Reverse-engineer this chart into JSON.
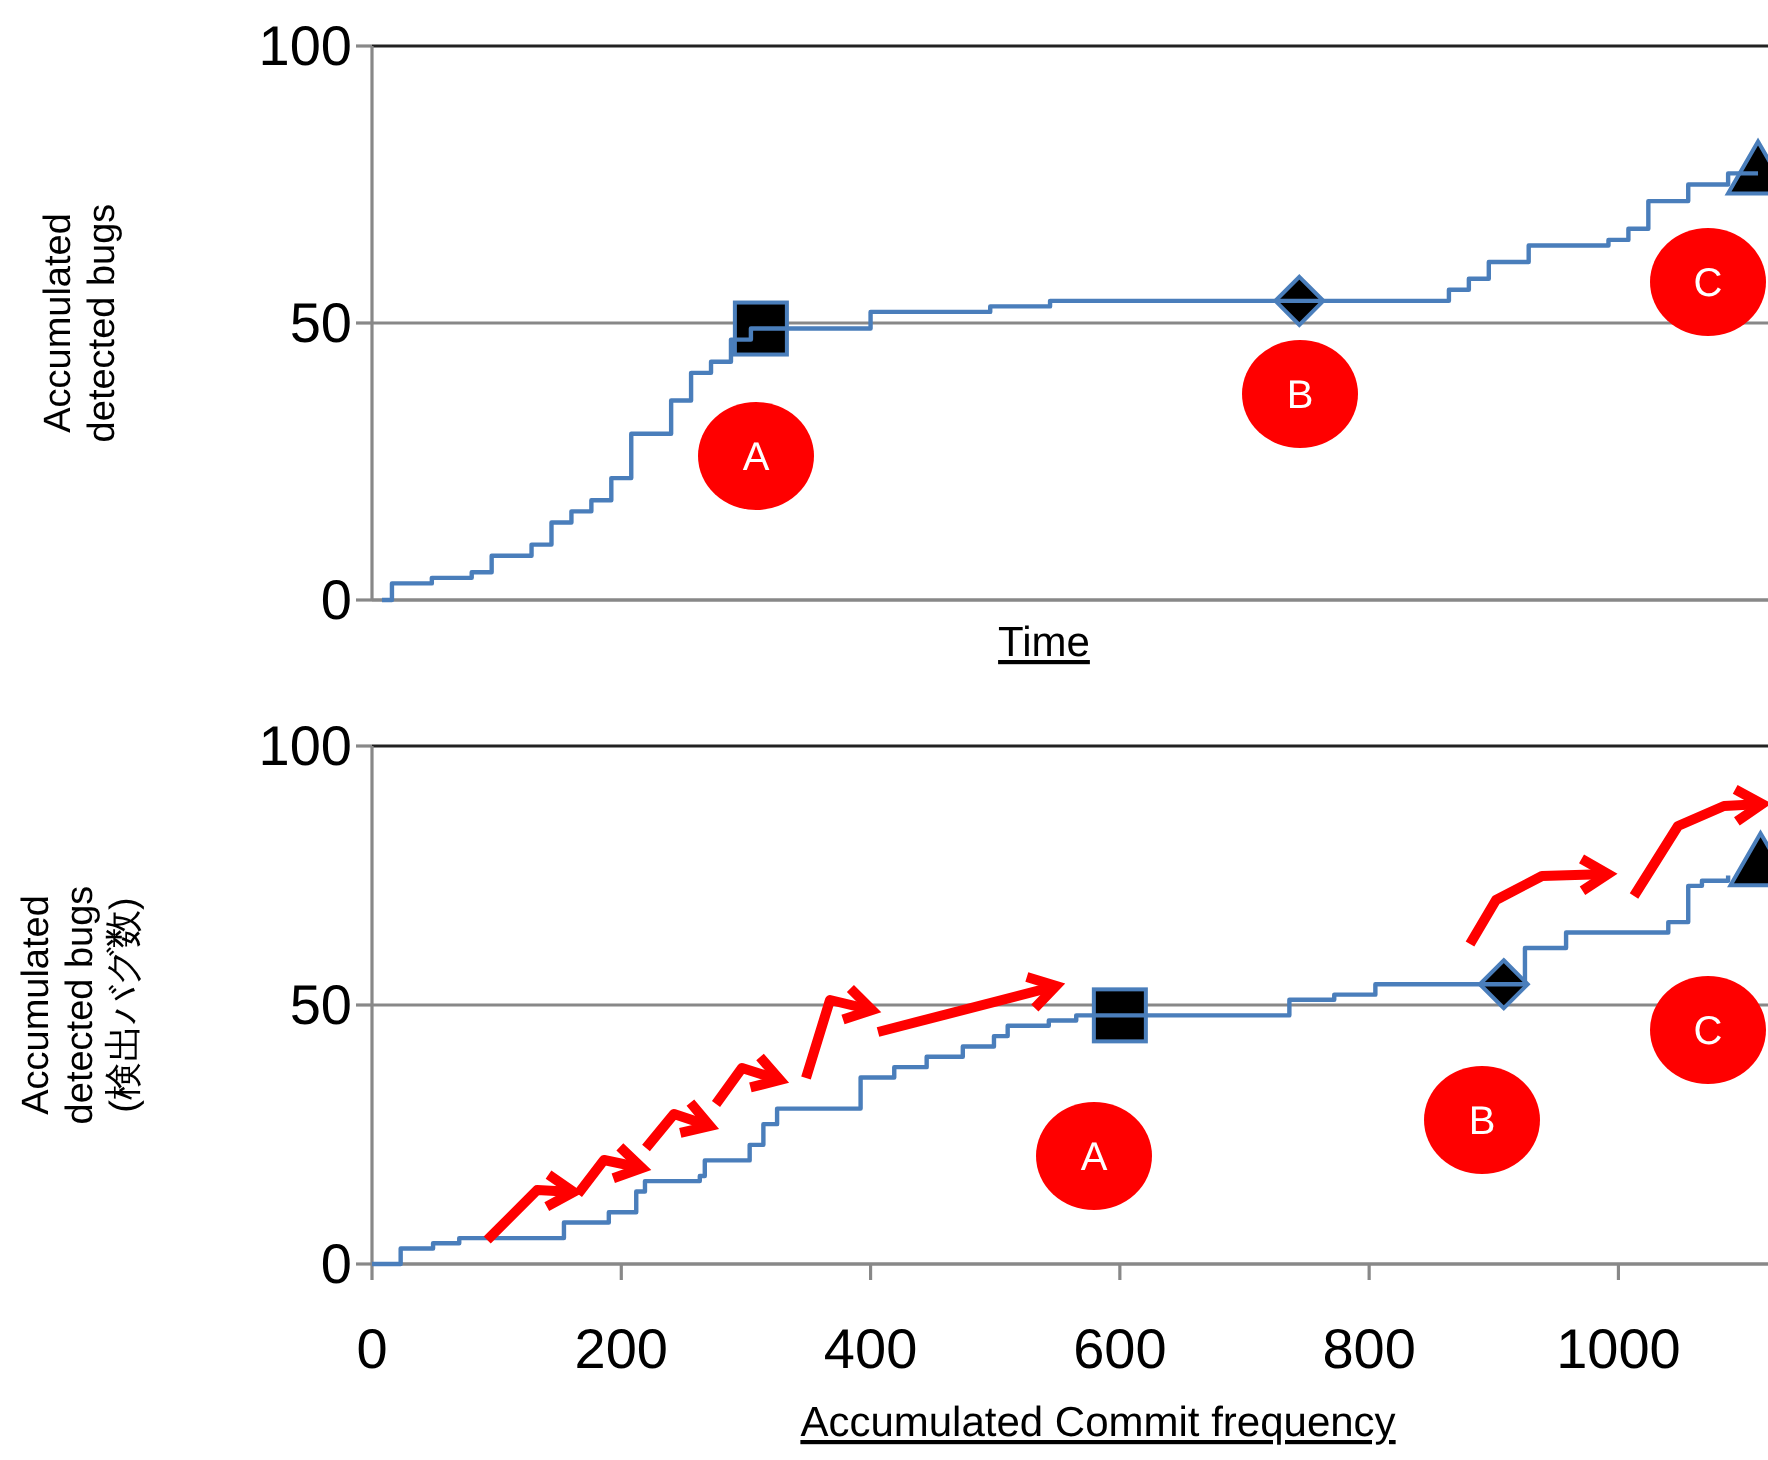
{
  "chart_data": [
    {
      "type": "step",
      "xlabel": "Time",
      "ylabel": "Accumulated detected bugs",
      "categories": [
        null,
        null,
        null,
        null,
        null,
        null,
        null,
        null,
        null,
        null,
        null,
        null,
        null,
        null,
        null,
        null,
        null,
        null,
        null,
        null,
        null,
        null,
        null,
        null,
        null,
        null,
        null,
        null,
        null,
        null,
        null,
        null,
        null,
        null,
        null,
        null,
        null,
        null,
        null,
        null,
        null,
        null,
        null,
        null,
        null,
        null,
        null,
        null,
        null,
        null,
        null,
        null,
        null,
        null,
        null,
        null,
        null,
        null,
        null,
        null,
        null,
        null,
        null,
        null,
        null,
        null,
        null,
        null,
        null,
        null
      ],
      "ylim": [
        0,
        100
      ],
      "yticks": [
        0,
        50,
        100
      ],
      "grid": "y",
      "tick_labels": "y",
      "series": [
        {
          "color": "#4a7ebb",
          "values": [
            0,
            3,
            3,
            4,
            4,
            5,
            8,
            8,
            10,
            14,
            16,
            18,
            22,
            30,
            30,
            36,
            41,
            43,
            47,
            49,
            49,
            49,
            49,
            49,
            49,
            52,
            52,
            52,
            52,
            52,
            52,
            53,
            53,
            53,
            54,
            54,
            54,
            54,
            54,
            54,
            54,
            54,
            54,
            54,
            54,
            54,
            54,
            54,
            54,
            54,
            54,
            54,
            54,
            54,
            56,
            58,
            61,
            61,
            64,
            64,
            64,
            64,
            65,
            67,
            72,
            72,
            75,
            75,
            77,
            77
          ]
        },
        {
          "type": "scatter",
          "marker": "square",
          "color": "#000000",
          "values": [
            null,
            null,
            null,
            null,
            null,
            null,
            null,
            null,
            null,
            null,
            null,
            null,
            null,
            null,
            null,
            null,
            null,
            null,
            null,
            49,
            null,
            null,
            null,
            null,
            null,
            null,
            null,
            null,
            null,
            null,
            null,
            null,
            null,
            null,
            null,
            null,
            null,
            null,
            null,
            null,
            null,
            null,
            null,
            null,
            null,
            null,
            null,
            null,
            null,
            null,
            null,
            null,
            null,
            null,
            null,
            null,
            null,
            null,
            null,
            null,
            null,
            null,
            null,
            null,
            null,
            null,
            null,
            null,
            null,
            null
          ]
        },
        {
          "type": "scatter",
          "marker": "diamond",
          "color": "#000000",
          "values": [
            null,
            null,
            null,
            null,
            null,
            null,
            null,
            null,
            null,
            null,
            null,
            null,
            null,
            null,
            null,
            null,
            null,
            null,
            null,
            null,
            null,
            null,
            null,
            null,
            null,
            null,
            null,
            null,
            null,
            null,
            null,
            null,
            null,
            null,
            null,
            null,
            null,
            null,
            null,
            null,
            null,
            null,
            null,
            null,
            null,
            null,
            54,
            null,
            null,
            null,
            null,
            null,
            null,
            null,
            null,
            null,
            null,
            null,
            null,
            null,
            null,
            null,
            null,
            null,
            null,
            null,
            null,
            null,
            null,
            null
          ]
        },
        {
          "type": "scatter",
          "marker": "triangle",
          "color": "#000000",
          "values": [
            null,
            null,
            null,
            null,
            null,
            null,
            null,
            null,
            null,
            null,
            null,
            null,
            null,
            null,
            null,
            null,
            null,
            null,
            null,
            null,
            null,
            null,
            null,
            null,
            null,
            null,
            null,
            null,
            null,
            null,
            null,
            null,
            null,
            null,
            null,
            null,
            null,
            null,
            null,
            null,
            null,
            null,
            null,
            null,
            null,
            null,
            null,
            null,
            null,
            null,
            null,
            null,
            null,
            null,
            null,
            null,
            null,
            null,
            null,
            null,
            null,
            null,
            null,
            null,
            null,
            null,
            null,
            null,
            null,
            77
          ]
        }
      ],
      "annotations": [
        "A",
        "B",
        "C"
      ]
    },
    {
      "type": "step",
      "xlabel": "Accumulated Commit frequency",
      "ylabel": "Accumulated detected bugs (検出バグ数)",
      "xlim": [
        0,
        1120
      ],
      "xticks": [
        0,
        200,
        400,
        600,
        800,
        1000
      ],
      "ylim": [
        0,
        100
      ],
      "yticks": [
        0,
        50,
        100
      ],
      "grid": "y",
      "series": [
        {
          "color": "#4a7ebb",
          "x": [
            0,
            16,
            23,
            49,
            70,
            154,
            190,
            212,
            219,
            263,
            267,
            303,
            314,
            325,
            392,
            419,
            445,
            474,
            499,
            510,
            543,
            565,
            736,
            772,
            805,
            925,
            958,
            1040,
            1056,
            1067,
            1088
          ],
          "values": [
            0,
            0,
            3,
            4,
            5,
            8,
            10,
            14,
            16,
            17,
            20,
            23,
            27,
            30,
            36,
            38,
            40,
            42,
            44,
            46,
            47,
            48,
            51,
            52,
            54,
            61,
            64,
            66,
            73,
            74,
            75
          ]
        },
        {
          "type": "scatter",
          "marker": "square",
          "color": "#000000",
          "x": [
            600
          ],
          "values": [
            48
          ]
        },
        {
          "type": "scatter",
          "marker": "diamond",
          "color": "#000000",
          "x": [
            908
          ],
          "values": [
            54
          ]
        },
        {
          "type": "scatter",
          "marker": "triangle",
          "color": "#000000",
          "x": [
            1114
          ],
          "values": [
            77
          ]
        }
      ],
      "annotations": [
        "A",
        "B",
        "C"
      ]
    }
  ]
}
